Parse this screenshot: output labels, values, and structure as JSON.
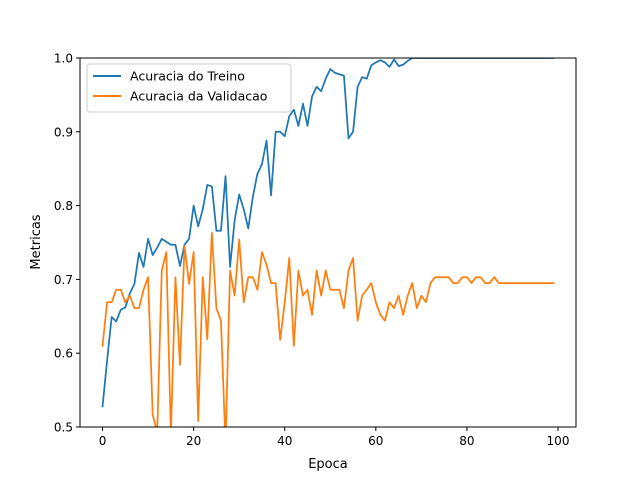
{
  "chart_data": {
    "type": "line",
    "xlabel": "Epoca",
    "ylabel": "Metricas",
    "xlim": [
      -4.95,
      103.95
    ],
    "ylim": [
      0.5,
      1.0
    ],
    "xticks": [
      0,
      20,
      40,
      60,
      80,
      100
    ],
    "yticks": [
      0.5,
      0.6,
      0.7,
      0.8,
      0.9,
      1.0
    ],
    "xtick_labels": [
      "0",
      "20",
      "40",
      "60",
      "80",
      "100"
    ],
    "ytick_labels": [
      "0.5",
      "0.6",
      "0.7",
      "0.8",
      "0.9",
      "1.0"
    ],
    "grid": false,
    "legend_position": "upper-left",
    "series": [
      {
        "name": "Acuracia do Treino",
        "color": "#1f77b4",
        "x": [
          0,
          1,
          2,
          3,
          4,
          5,
          6,
          7,
          8,
          9,
          10,
          11,
          12,
          13,
          14,
          15,
          16,
          17,
          18,
          19,
          20,
          21,
          22,
          23,
          24,
          25,
          26,
          27,
          28,
          29,
          30,
          31,
          32,
          33,
          34,
          35,
          36,
          37,
          38,
          39,
          40,
          41,
          42,
          43,
          44,
          45,
          46,
          47,
          48,
          49,
          50,
          51,
          52,
          53,
          54,
          55,
          56,
          57,
          58,
          59,
          60,
          61,
          62,
          63,
          64,
          65,
          66,
          67,
          68,
          69,
          70,
          71,
          72,
          73,
          74,
          75,
          76,
          77,
          78,
          79,
          80,
          81,
          82,
          83,
          84,
          85,
          86,
          87,
          88,
          89,
          90,
          91,
          92,
          93,
          94,
          95,
          96,
          97,
          98,
          99
        ],
        "y": [
          0.528,
          0.59,
          0.649,
          0.643,
          0.659,
          0.662,
          0.681,
          0.694,
          0.736,
          0.717,
          0.755,
          0.733,
          0.743,
          0.755,
          0.751,
          0.747,
          0.747,
          0.718,
          0.747,
          0.755,
          0.8,
          0.772,
          0.795,
          0.828,
          0.826,
          0.766,
          0.766,
          0.84,
          0.717,
          0.78,
          0.815,
          0.795,
          0.769,
          0.812,
          0.843,
          0.856,
          0.888,
          0.814,
          0.9,
          0.9,
          0.894,
          0.921,
          0.93,
          0.908,
          0.938,
          0.908,
          0.948,
          0.961,
          0.955,
          0.972,
          0.985,
          0.98,
          0.978,
          0.976,
          0.891,
          0.9,
          0.961,
          0.974,
          0.972,
          0.99,
          0.994,
          0.997,
          0.994,
          0.988,
          0.998,
          0.989,
          0.991,
          0.996,
          1.0,
          1.0,
          1.0,
          1.0,
          1.0,
          1.0,
          1.0,
          1.0,
          1.0,
          1.0,
          1.0,
          1.0,
          1.0,
          1.0,
          1.0,
          1.0,
          1.0,
          1.0,
          1.0,
          1.0,
          1.0,
          1.0,
          1.0,
          1.0,
          1.0,
          1.0,
          1.0,
          1.0,
          1.0,
          1.0,
          1.0,
          1.0
        ]
      },
      {
        "name": "Acuracia da Validacao",
        "color": "#ff7f0e",
        "x": [
          0,
          1,
          2,
          3,
          4,
          5,
          6,
          7,
          8,
          9,
          10,
          11,
          12,
          13,
          14,
          15,
          16,
          17,
          18,
          19,
          20,
          21,
          22,
          23,
          24,
          25,
          26,
          27,
          28,
          29,
          30,
          31,
          32,
          33,
          34,
          35,
          36,
          37,
          38,
          39,
          40,
          41,
          42,
          43,
          44,
          45,
          46,
          47,
          48,
          49,
          50,
          51,
          52,
          53,
          54,
          55,
          56,
          57,
          58,
          59,
          60,
          61,
          62,
          63,
          64,
          65,
          66,
          67,
          68,
          69,
          70,
          71,
          72,
          73,
          74,
          75,
          76,
          77,
          78,
          79,
          80,
          81,
          82,
          83,
          84,
          85,
          86,
          87,
          88,
          89,
          90,
          91,
          92,
          93,
          94,
          95,
          96,
          97,
          98,
          99
        ],
        "y": [
          0.61,
          0.669,
          0.669,
          0.686,
          0.686,
          0.669,
          0.678,
          0.661,
          0.661,
          0.686,
          0.703,
          0.517,
          0.492,
          0.712,
          0.737,
          0.49,
          0.703,
          0.584,
          0.745,
          0.694,
          0.737,
          0.508,
          0.703,
          0.619,
          0.763,
          0.661,
          0.644,
          0.475,
          0.712,
          0.678,
          0.754,
          0.669,
          0.703,
          0.703,
          0.686,
          0.737,
          0.72,
          0.695,
          0.695,
          0.618,
          0.669,
          0.729,
          0.61,
          0.712,
          0.678,
          0.686,
          0.652,
          0.712,
          0.678,
          0.712,
          0.686,
          0.686,
          0.686,
          0.661,
          0.712,
          0.729,
          0.644,
          0.678,
          0.686,
          0.695,
          0.669,
          0.652,
          0.644,
          0.669,
          0.661,
          0.678,
          0.652,
          0.678,
          0.695,
          0.661,
          0.678,
          0.669,
          0.695,
          0.703,
          0.703,
          0.703,
          0.703,
          0.695,
          0.695,
          0.703,
          0.703,
          0.695,
          0.703,
          0.703,
          0.695,
          0.695,
          0.703,
          0.695,
          0.695,
          0.695,
          0.695,
          0.695,
          0.695,
          0.695,
          0.695,
          0.695,
          0.695,
          0.695,
          0.695,
          0.695
        ]
      }
    ]
  }
}
